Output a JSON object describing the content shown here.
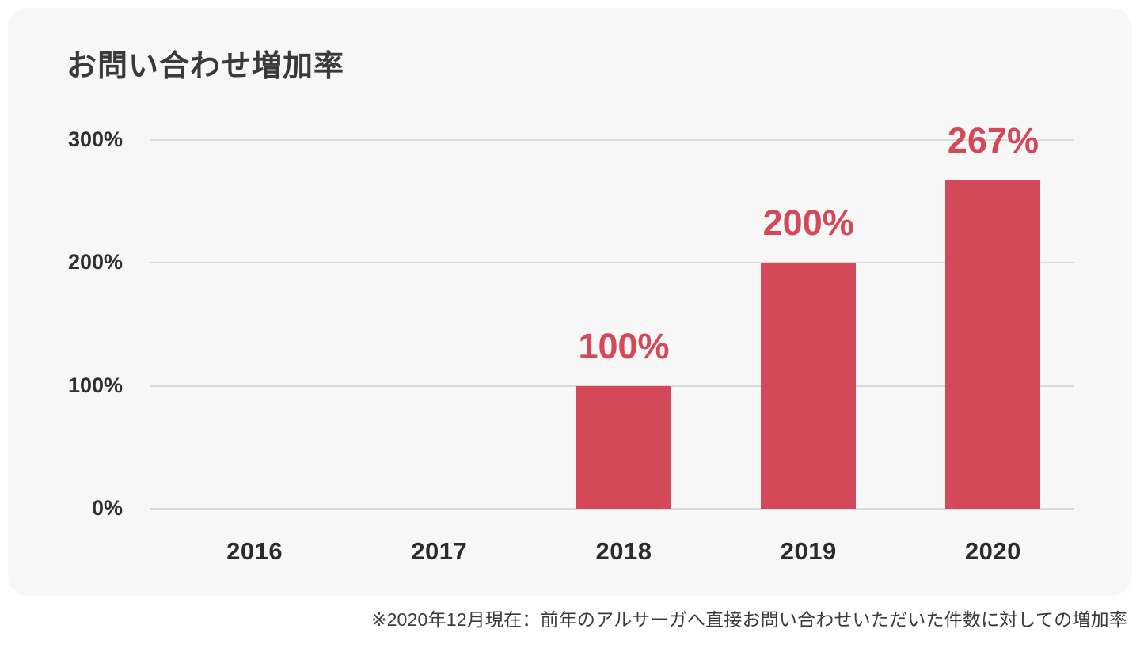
{
  "page": {
    "background": "#ffffff",
    "card_background": "#f8f7f8",
    "gridline_color": "#d9d9d9",
    "text_color": "#3a3a3a"
  },
  "chart_data": {
    "type": "bar",
    "title": "お問い合わせ増加率",
    "categories": [
      "2016",
      "2017",
      "2018",
      "2019",
      "2020"
    ],
    "values": [
      0,
      0,
      100,
      200,
      267
    ],
    "bar_labels": [
      "",
      "",
      "100%",
      "200%",
      "267%"
    ],
    "y_ticks": [
      {
        "value": 300,
        "label": "300%"
      },
      {
        "value": 200,
        "label": "200%"
      },
      {
        "value": 100,
        "label": "100%"
      },
      {
        "value": 0,
        "label": "0%"
      }
    ],
    "ylim": [
      0,
      300
    ],
    "xlabel": "",
    "ylabel": "",
    "grid": true,
    "legend": "none",
    "bar_color": "#d4495a",
    "value_label_color": "#d4495a",
    "footnote": "※2020年12月現在：前年のアルサーガへ直接お問い合わせいただいた件数に対しての増加率"
  }
}
